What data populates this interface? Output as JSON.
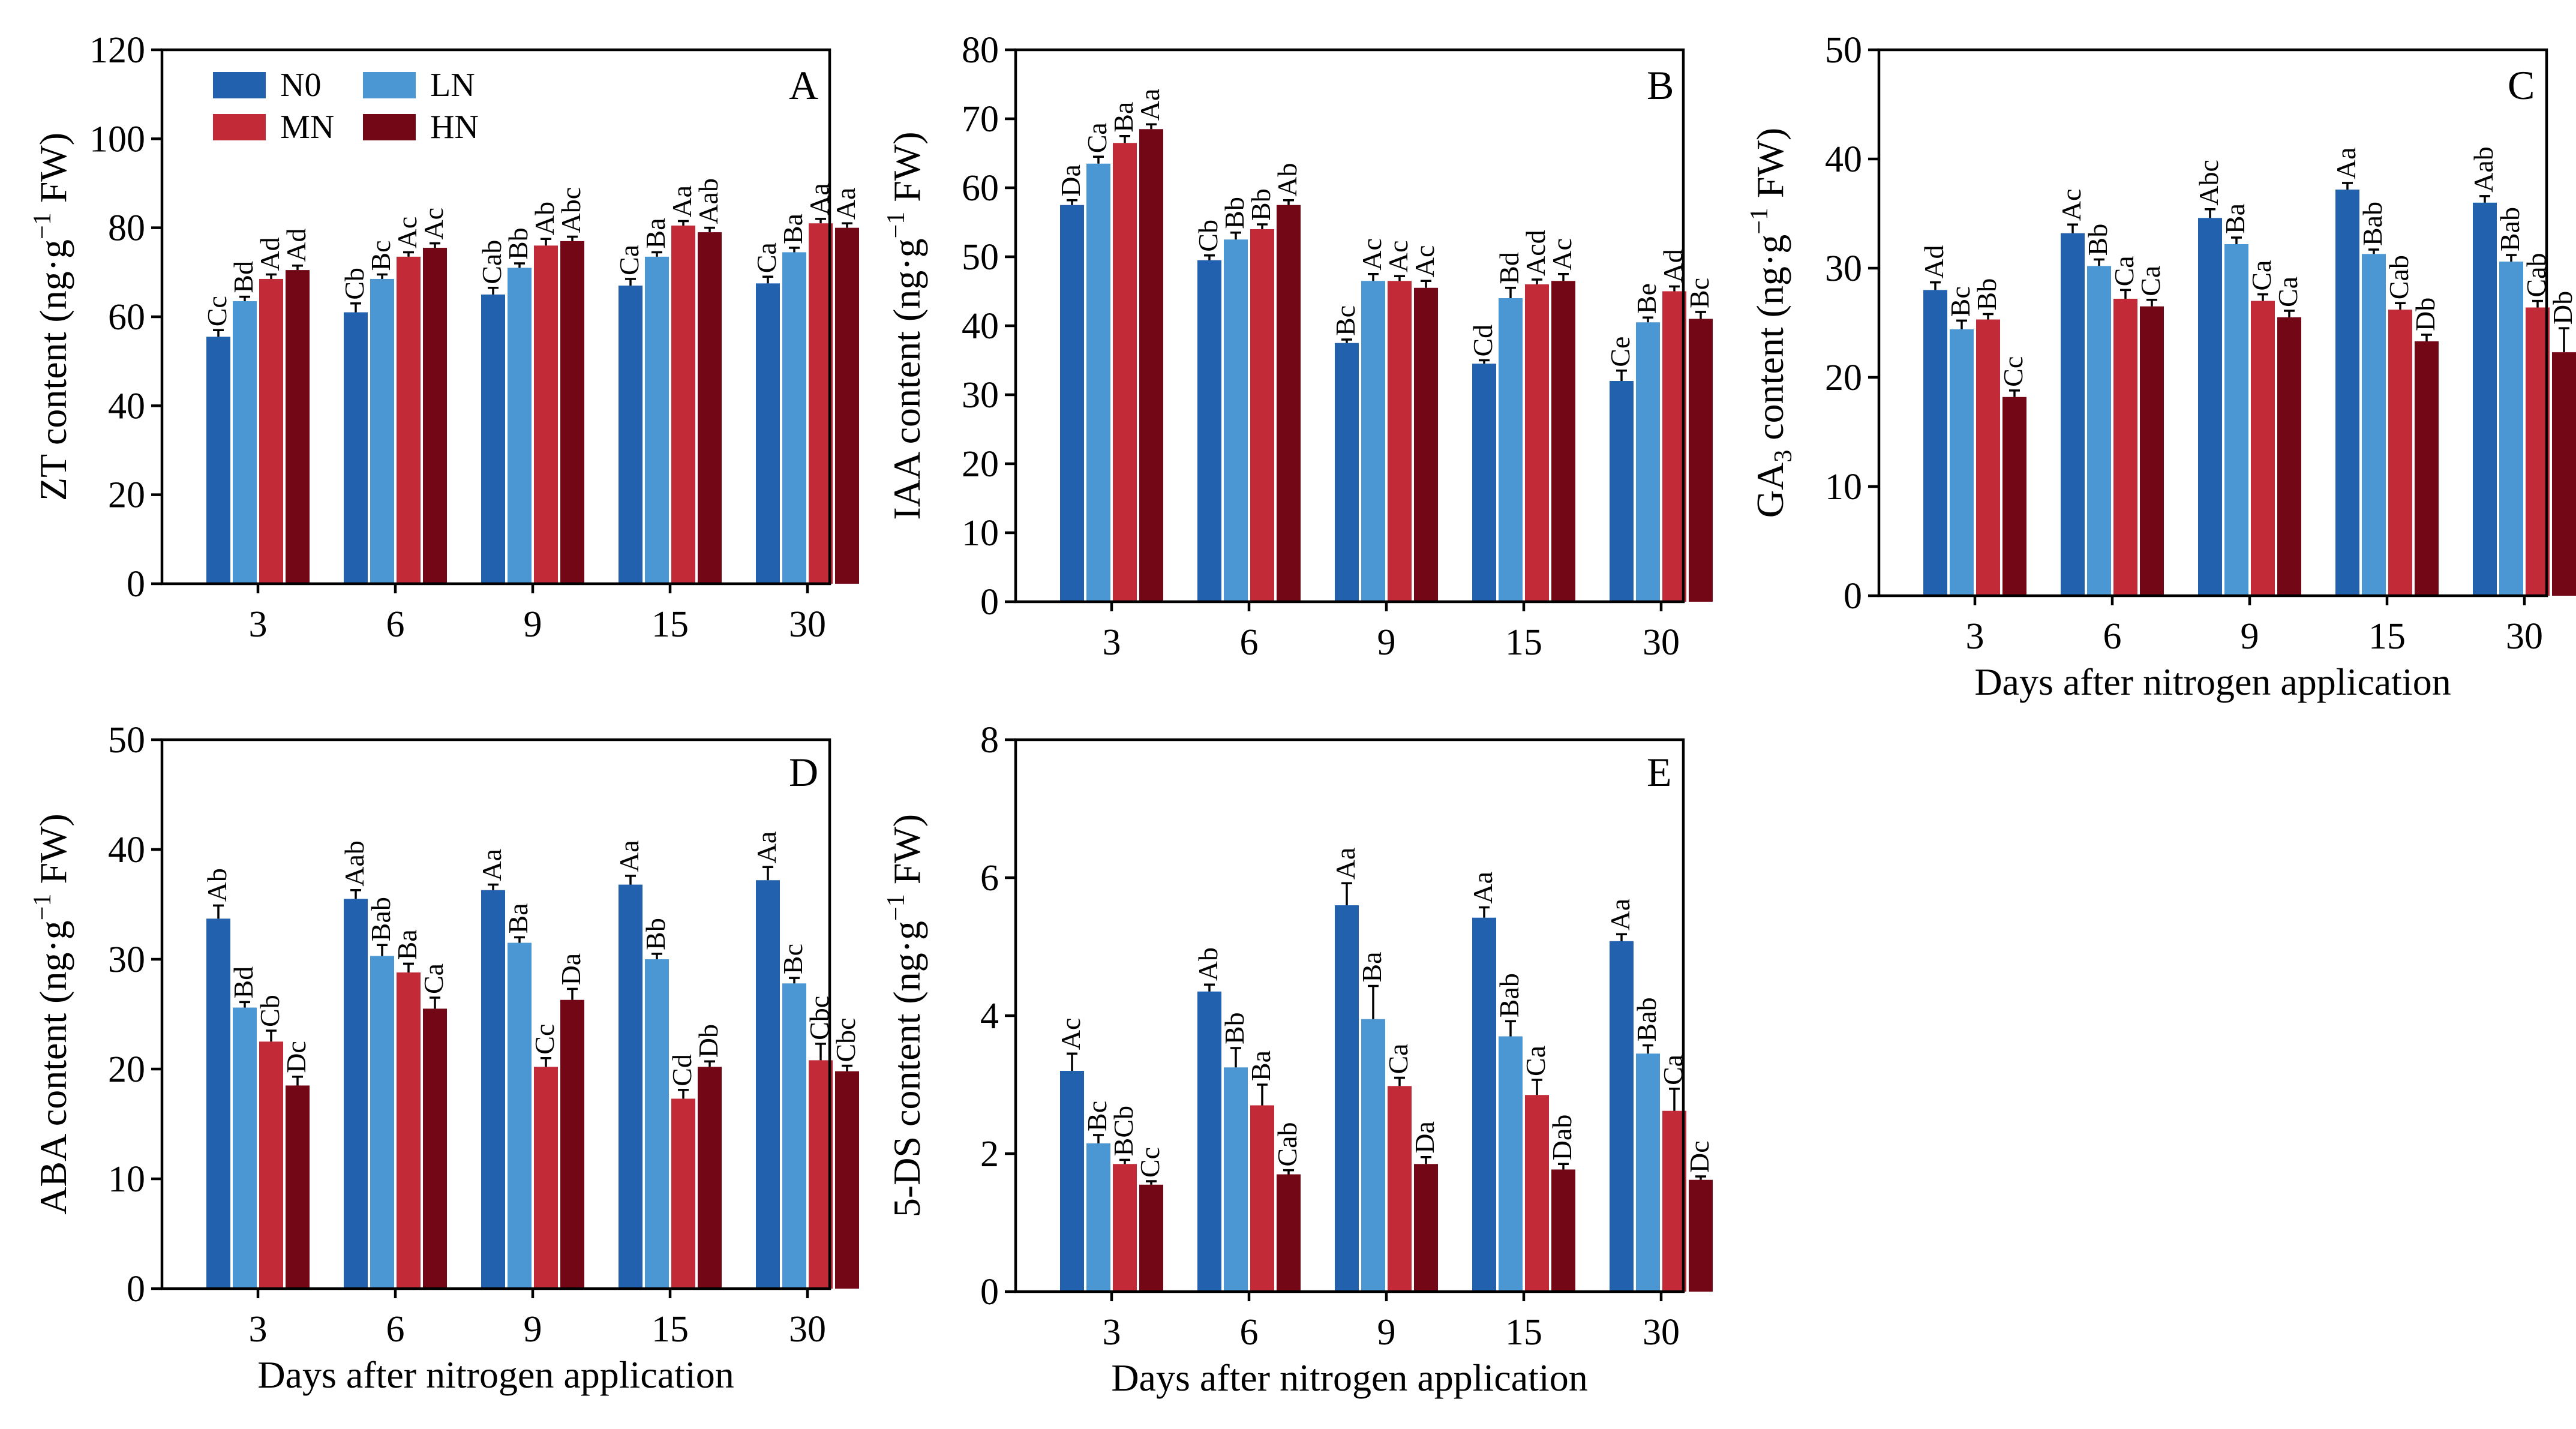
{
  "colors": {
    "N0": "#2261ad",
    "LN": "#4a97d3",
    "MN": "#c22a38",
    "HN": "#730716"
  },
  "legend": [
    {
      "name": "N0",
      "color": "#2261ad"
    },
    {
      "name": "LN",
      "color": "#4a97d3"
    },
    {
      "name": "MN",
      "color": "#c22a38"
    },
    {
      "name": "HN",
      "color": "#730716"
    }
  ],
  "xlabel": "Days after nitrogen application",
  "chart_data": [
    {
      "panel": "A",
      "type": "bar",
      "ylabel": "ZT content (ng·g⁻¹ FW)",
      "ylabel_main": "ZT content (ng·g",
      "ylabel_sup": "−1",
      "ylabel_end": " FW)",
      "ylim": [
        0,
        120
      ],
      "yticks": [
        0,
        20,
        40,
        60,
        80,
        100,
        120
      ],
      "categories": [
        "3",
        "6",
        "9",
        "15",
        "30"
      ],
      "xlabel": "",
      "series": [
        {
          "name": "N0",
          "values": [
            55.5,
            61,
            65,
            67,
            67.5
          ],
          "errors": [
            1.5,
            2,
            1.5,
            1.5,
            1.5
          ],
          "labels": [
            "Cc",
            "Cb",
            "Cab",
            "Ca",
            "Ca"
          ]
        },
        {
          "name": "LN",
          "values": [
            63.5,
            68.5,
            71,
            73.5,
            74.5
          ],
          "errors": [
            1,
            1,
            1,
            1,
            1
          ],
          "labels": [
            "Bd",
            "Bc",
            "Bb",
            "Ba",
            "Ba"
          ]
        },
        {
          "name": "MN",
          "values": [
            68.5,
            73.5,
            76,
            80.5,
            81
          ],
          "errors": [
            1,
            1,
            1.5,
            1,
            1
          ],
          "labels": [
            "Ad",
            "Ac",
            "Ab",
            "Aa",
            "Aa"
          ]
        },
        {
          "name": "HN",
          "values": [
            70.5,
            75.5,
            77,
            79,
            80
          ],
          "errors": [
            1,
            1,
            1,
            1,
            1
          ],
          "labels": [
            "Ad",
            "Ac",
            "Abc",
            "Aab",
            "Aa"
          ]
        }
      ]
    },
    {
      "panel": "B",
      "type": "bar",
      "ylabel": "IAA content (ng·g⁻¹ FW)",
      "ylabel_main": "IAA content (ng·g",
      "ylabel_sup": "−1",
      "ylabel_end": " FW)",
      "ylim": [
        0,
        80
      ],
      "yticks": [
        0,
        10,
        20,
        30,
        40,
        50,
        60,
        70,
        80
      ],
      "categories": [
        "3",
        "6",
        "9",
        "15",
        "30"
      ],
      "xlabel": "",
      "series": [
        {
          "name": "N0",
          "values": [
            57.5,
            49.5,
            37.5,
            34.5,
            32
          ],
          "errors": [
            0.7,
            0.7,
            0.5,
            0.5,
            1.5
          ],
          "labels": [
            "Da",
            "Cb",
            "Bc",
            "Cd",
            "Ce"
          ]
        },
        {
          "name": "LN",
          "values": [
            63.5,
            52.5,
            46.5,
            44,
            40.5
          ],
          "errors": [
            1,
            1,
            1,
            1.5,
            0.7
          ],
          "labels": [
            "Ca",
            "Bb",
            "Ac",
            "Bd",
            "Be"
          ]
        },
        {
          "name": "MN",
          "values": [
            66.5,
            54,
            46.5,
            46,
            45
          ],
          "errors": [
            1,
            0.7,
            0.7,
            0.7,
            0.7
          ],
          "labels": [
            "Ba",
            "Bb",
            "Ac",
            "Acd",
            "Ad"
          ]
        },
        {
          "name": "HN",
          "values": [
            68.5,
            57.5,
            45.5,
            46.5,
            41
          ],
          "errors": [
            0.7,
            0.7,
            1,
            1,
            1
          ],
          "labels": [
            "Aa",
            "Ab",
            "Ac",
            "Ac",
            "Bc"
          ]
        }
      ]
    },
    {
      "panel": "C",
      "type": "bar",
      "ylabel": "GA₃ content (ng·g⁻¹ FW)",
      "ylabel_main": "GA",
      "ylabel_sub": "3",
      "ylabel_main2": " content (ng·g",
      "ylabel_sup": "−1",
      "ylabel_end": " FW)",
      "ylim": [
        0,
        50
      ],
      "yticks": [
        0,
        10,
        20,
        30,
        40,
        50
      ],
      "categories": [
        "3",
        "6",
        "9",
        "15",
        "30"
      ],
      "xlabel": "Days after nitrogen application",
      "series": [
        {
          "name": "N0",
          "values": [
            28,
            33.2,
            34.6,
            37.2,
            36
          ],
          "errors": [
            0.7,
            0.8,
            0.8,
            0.6,
            0.6
          ],
          "labels": [
            "Ad",
            "Ac",
            "Abc",
            "Aa",
            "Aab"
          ]
        },
        {
          "name": "LN",
          "values": [
            24.4,
            30.2,
            32.2,
            31.3,
            30.6
          ],
          "errors": [
            0.8,
            0.6,
            0.6,
            0.4,
            0.6
          ],
          "labels": [
            "Bc",
            "Bb",
            "Ba",
            "Bab",
            "Bab"
          ]
        },
        {
          "name": "MN",
          "values": [
            25.3,
            27.2,
            27,
            26.2,
            26.4
          ],
          "errors": [
            0.5,
            0.8,
            0.6,
            0.6,
            0.6
          ],
          "labels": [
            "Bb",
            "Ca",
            "Ca",
            "Cab",
            "Cab"
          ]
        },
        {
          "name": "HN",
          "values": [
            18.2,
            26.5,
            25.5,
            23.3,
            22.3
          ],
          "errors": [
            0.6,
            0.6,
            0.6,
            0.6,
            2.2
          ],
          "labels": [
            "Cc",
            "Ca",
            "Ca",
            "Db",
            "Db"
          ]
        }
      ]
    },
    {
      "panel": "D",
      "type": "bar",
      "ylabel": "ABA content (ng·g⁻¹ FW)",
      "ylabel_main": "ABA content (ng·g",
      "ylabel_sup": "−1",
      "ylabel_end": " FW)",
      "ylim": [
        0,
        50
      ],
      "yticks": [
        0,
        10,
        20,
        30,
        40,
        50
      ],
      "categories": [
        "3",
        "6",
        "9",
        "15",
        "30"
      ],
      "xlabel": "Days after nitrogen application",
      "series": [
        {
          "name": "N0",
          "values": [
            33.7,
            35.5,
            36.3,
            36.8,
            37.2
          ],
          "errors": [
            1.2,
            0.8,
            0.5,
            0.8,
            1.2
          ],
          "labels": [
            "Ab",
            "Aab",
            "Aa",
            "Aa",
            "Aa"
          ]
        },
        {
          "name": "LN",
          "values": [
            25.6,
            30.3,
            31.5,
            30,
            27.8
          ],
          "errors": [
            0.5,
            1,
            0.5,
            0.5,
            0.5
          ],
          "labels": [
            "Bd",
            "Bab",
            "Ba",
            "Bb",
            "Bc"
          ]
        },
        {
          "name": "MN",
          "values": [
            22.5,
            28.8,
            20.2,
            17.3,
            20.8
          ],
          "errors": [
            1,
            0.8,
            0.8,
            0.8,
            1.5
          ],
          "labels": [
            "Cb",
            "Ba",
            "Cc",
            "Cd",
            "Cbc"
          ]
        },
        {
          "name": "HN",
          "values": [
            18.5,
            25.5,
            26.3,
            20.2,
            19.8
          ],
          "errors": [
            0.8,
            1,
            1,
            0.5,
            0.5
          ],
          "labels": [
            "Dc",
            "Ca",
            "Da",
            "Db",
            "Cbc"
          ]
        }
      ]
    },
    {
      "panel": "E",
      "type": "bar",
      "ylabel": "5-DS content (ng·g⁻¹ FW)",
      "ylabel_main": "5-DS content (ng·g",
      "ylabel_sup": "−1",
      "ylabel_end": " FW)",
      "ylim": [
        0,
        8
      ],
      "yticks": [
        0,
        2,
        4,
        6,
        8
      ],
      "categories": [
        "3",
        "6",
        "9",
        "15",
        "30"
      ],
      "xlabel": "Days after nitrogen application",
      "series": [
        {
          "name": "N0",
          "values": [
            3.2,
            4.35,
            5.6,
            5.42,
            5.08
          ],
          "errors": [
            0.25,
            0.1,
            0.32,
            0.15,
            0.1
          ],
          "labels": [
            "Ac",
            "Ab",
            "Aa",
            "Aa",
            "Aa"
          ]
        },
        {
          "name": "LN",
          "values": [
            2.15,
            3.25,
            3.95,
            3.7,
            3.45
          ],
          "errors": [
            0.12,
            0.28,
            0.48,
            0.22,
            0.12
          ],
          "labels": [
            "Bc",
            "Bb",
            "Ba",
            "Bab",
            "Bab"
          ]
        },
        {
          "name": "MN",
          "values": [
            1.85,
            2.7,
            2.98,
            2.85,
            2.62
          ],
          "errors": [
            0.06,
            0.3,
            0.12,
            0.22,
            0.32
          ],
          "labels": [
            "BCb",
            "Ba",
            "Ca",
            "Ca",
            "Ca"
          ]
        },
        {
          "name": "HN",
          "values": [
            1.55,
            1.7,
            1.85,
            1.77,
            1.62
          ],
          "errors": [
            0.05,
            0.06,
            0.1,
            0.08,
            0.05
          ],
          "labels": [
            "Cc",
            "Cab",
            "Da",
            "Dab",
            "Dc"
          ]
        }
      ]
    }
  ]
}
